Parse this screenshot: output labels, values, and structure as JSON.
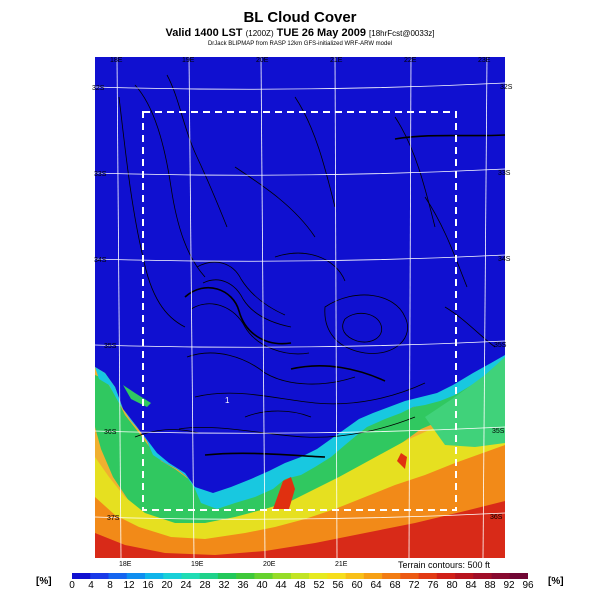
{
  "header": {
    "title": "BL Cloud Cover",
    "valid_prefix": "Valid 1400 LST",
    "valid_zulu": "(1200Z)",
    "valid_date": "TUE 26 May 2009",
    "forecast": "[18hrFcst@0033z]",
    "credit": "DrJack BLIPMAP from RASP 12km GFS-initialized WRF-ARW model"
  },
  "map": {
    "top_lon_labels": [
      "18E",
      "19E",
      "20E",
      "21E",
      "22E",
      "23E"
    ],
    "bottom_lon_labels": [
      "18E",
      "19E",
      "20E",
      "21E"
    ],
    "left_lat_labels": [
      "32S",
      "33S",
      "34S",
      "35S",
      "36S",
      "37S"
    ],
    "right_lat_labels": [
      "32S",
      "33S",
      "34S",
      "35S",
      "35S",
      "36S"
    ],
    "terrain_note": "Terrain contours: 500 ft",
    "spot_label": "1"
  },
  "colorbar": {
    "unit_left": "[%]",
    "unit_right": "[%]",
    "ticks": [
      "0",
      "4",
      "8",
      "12",
      "16",
      "20",
      "24",
      "28",
      "32",
      "36",
      "40",
      "44",
      "48",
      "52",
      "56",
      "60",
      "64",
      "68",
      "72",
      "76",
      "80",
      "84",
      "88",
      "92",
      "96"
    ],
    "colors": [
      "#1010d0",
      "#1a3ae8",
      "#1565f0",
      "#0f8ef0",
      "#10b5ea",
      "#19d0d8",
      "#20dcb4",
      "#1fd28a",
      "#22c85a",
      "#3ec83a",
      "#66d22e",
      "#96dc28",
      "#c2e424",
      "#e6ea20",
      "#f6de1c",
      "#f8c018",
      "#f6a014",
      "#f27c12",
      "#ec5a12",
      "#e23a14",
      "#d02018",
      "#b8141e",
      "#a00e28",
      "#880a30",
      "#700634"
    ]
  },
  "legend_scale": {
    "min_percent": 0,
    "max_percent": 96,
    "step_percent": 4
  }
}
